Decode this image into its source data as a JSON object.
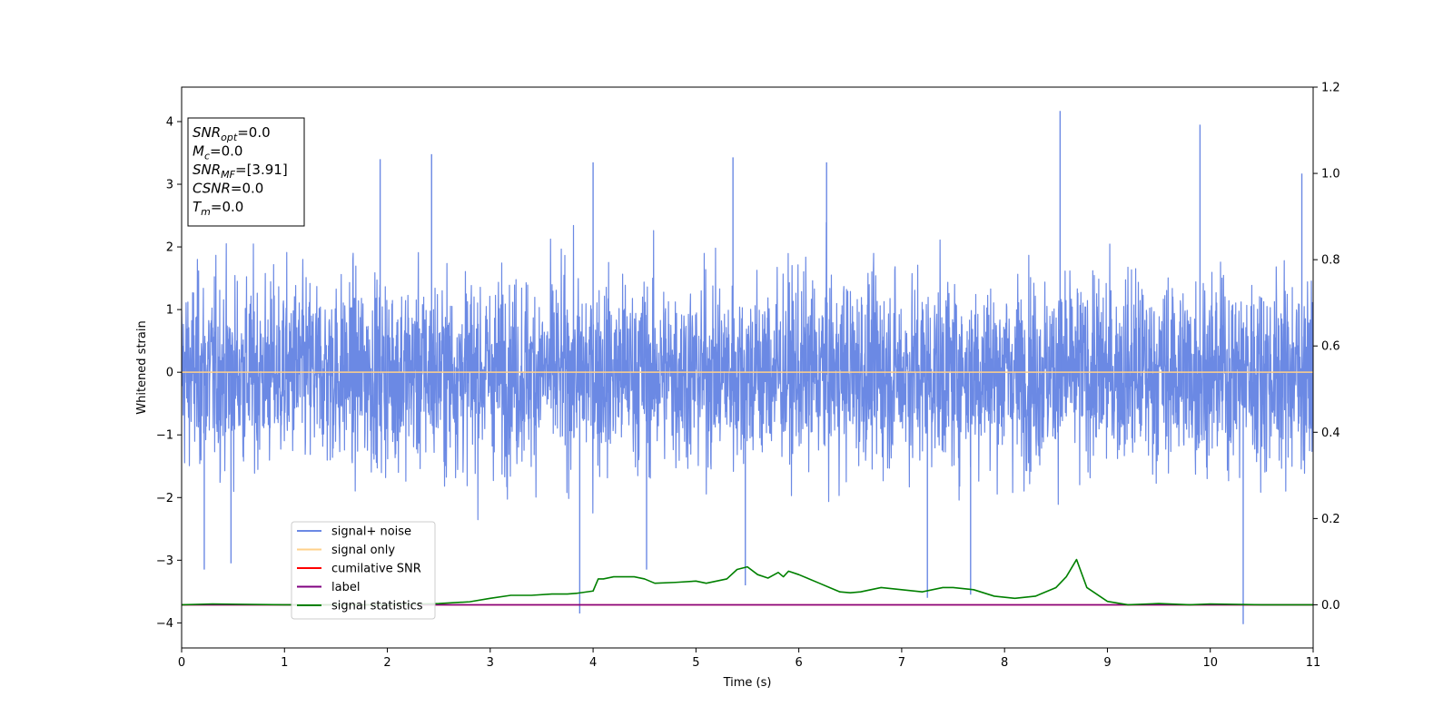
{
  "chart_data": {
    "type": "line",
    "xlabel": "Time (s)",
    "ylabel": "Whitened strain",
    "xlim": [
      0,
      11
    ],
    "ylim": [
      -4.4,
      4.55
    ],
    "y2lim": [
      -0.1,
      1.2
    ],
    "xticks": [
      0,
      1,
      2,
      3,
      4,
      5,
      6,
      7,
      8,
      9,
      10,
      11
    ],
    "yticks": [
      -4,
      -3,
      -2,
      -1,
      0,
      1,
      2,
      3,
      4
    ],
    "y2ticks": [
      "0.0",
      "0.2",
      "0.4",
      "0.6",
      "0.8",
      "1.0",
      "1.2"
    ],
    "grid": false,
    "legend_position": "lower-left",
    "annotation": {
      "position": "top-left",
      "lines": [
        {
          "main": "SNR",
          "sub": "opt",
          "value": "=0.0"
        },
        {
          "main": "M",
          "sub": "c",
          "value": "=0.0"
        },
        {
          "main": "SNR",
          "sub": "MF",
          "value": "=[3.91]"
        },
        {
          "main": "CSNR",
          "sub": "",
          "value": "=0.0"
        },
        {
          "main": "T",
          "sub": "m",
          "value": "=0.0"
        }
      ]
    },
    "series": [
      {
        "name": "signal+ noise",
        "color": "#6b89e4",
        "axis": "left",
        "kind": "noise",
        "typical_envelope": [
          -2.4,
          2.5
        ],
        "peaks": [
          {
            "x": 0.22,
            "y": -3.15
          },
          {
            "x": 0.48,
            "y": -3.05
          },
          {
            "x": 1.93,
            "y": 3.4
          },
          {
            "x": 2.43,
            "y": 3.48
          },
          {
            "x": 3.87,
            "y": -3.85
          },
          {
            "x": 4.0,
            "y": 3.35
          },
          {
            "x": 4.52,
            "y": -3.15
          },
          {
            "x": 5.36,
            "y": 3.43
          },
          {
            "x": 5.48,
            "y": -3.4
          },
          {
            "x": 6.27,
            "y": 3.35
          },
          {
            "x": 7.25,
            "y": -3.6
          },
          {
            "x": 7.67,
            "y": -3.55
          },
          {
            "x": 8.54,
            "y": 4.17
          },
          {
            "x": 9.9,
            "y": 3.95
          },
          {
            "x": 10.32,
            "y": -4.02
          },
          {
            "x": 10.89,
            "y": 3.17
          }
        ]
      },
      {
        "name": "signal only",
        "color": "#ffd08a",
        "axis": "left",
        "x": [
          0,
          11
        ],
        "y": [
          0,
          0
        ]
      },
      {
        "name": "cumilative SNR",
        "color": "#ff0000",
        "axis": "right",
        "x": [
          0,
          11
        ],
        "y": [
          0,
          0
        ]
      },
      {
        "name": "label",
        "color": "#800080",
        "axis": "right",
        "x": [
          0,
          11
        ],
        "y": [
          0,
          0
        ]
      },
      {
        "name": "signal statistics",
        "color": "#008000",
        "axis": "right",
        "x": [
          0,
          0.3,
          1,
          2,
          2.5,
          2.8,
          3.0,
          3.2,
          3.4,
          3.6,
          3.75,
          3.85,
          4.0,
          4.05,
          4.1,
          4.2,
          4.4,
          4.5,
          4.6,
          4.8,
          5.0,
          5.1,
          5.3,
          5.4,
          5.5,
          5.6,
          5.7,
          5.8,
          5.85,
          5.9,
          6.0,
          6.2,
          6.3,
          6.4,
          6.5,
          6.6,
          6.8,
          7.0,
          7.2,
          7.4,
          7.5,
          7.7,
          7.9,
          8.1,
          8.3,
          8.5,
          8.6,
          8.7,
          8.8,
          9.0,
          9.2,
          9.5,
          9.8,
          10,
          10.5,
          11
        ],
        "y": [
          0.0,
          0.002,
          0.0,
          0.0,
          0.003,
          0.007,
          0.015,
          0.022,
          0.022,
          0.025,
          0.025,
          0.027,
          0.032,
          0.06,
          0.06,
          0.065,
          0.065,
          0.06,
          0.05,
          0.052,
          0.055,
          0.05,
          0.06,
          0.082,
          0.088,
          0.07,
          0.062,
          0.075,
          0.065,
          0.078,
          0.07,
          0.05,
          0.04,
          0.03,
          0.028,
          0.03,
          0.04,
          0.035,
          0.03,
          0.04,
          0.04,
          0.035,
          0.02,
          0.015,
          0.02,
          0.04,
          0.065,
          0.105,
          0.04,
          0.008,
          0.0,
          0.003,
          0.0,
          0.002,
          0.0,
          0.0
        ]
      }
    ]
  }
}
